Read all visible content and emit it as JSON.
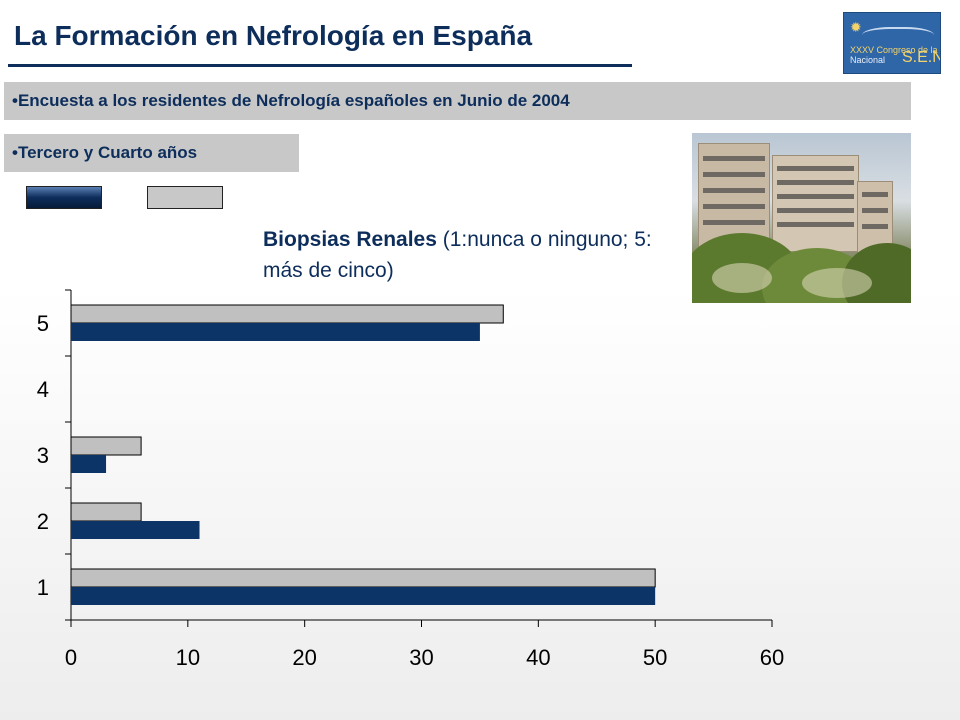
{
  "header": {
    "title": "La Formación en Nefrología en España",
    "subtitle": "•Encuesta a los residentes de Nefrología españoles en Junio de 2004",
    "section": "•Tercero y Cuarto años"
  },
  "logo": {
    "line1": "XXXV Congreso de la",
    "line2": "Nacional",
    "brand": "S.E.N."
  },
  "colors": {
    "primary_series": "#0d3466",
    "secondary_series": "#c0c0c0",
    "title": "#0d2d5b"
  },
  "chart_heading": {
    "bold": "Biopsias Renales",
    "rest": " (1:nunca o ninguno; 5: más de cinco)"
  },
  "chart_data": {
    "type": "bar",
    "orientation": "horizontal",
    "categories": [
      "1",
      "2",
      "3",
      "4",
      "5"
    ],
    "series": [
      {
        "values": [
          50,
          11,
          3,
          0,
          35
        ]
      },
      {
        "values": [
          50,
          6,
          6,
          0,
          37
        ]
      }
    ],
    "xlim": [
      0,
      60
    ],
    "xticks": [
      0,
      10,
      20,
      30,
      40,
      50,
      60
    ],
    "grid": false
  }
}
